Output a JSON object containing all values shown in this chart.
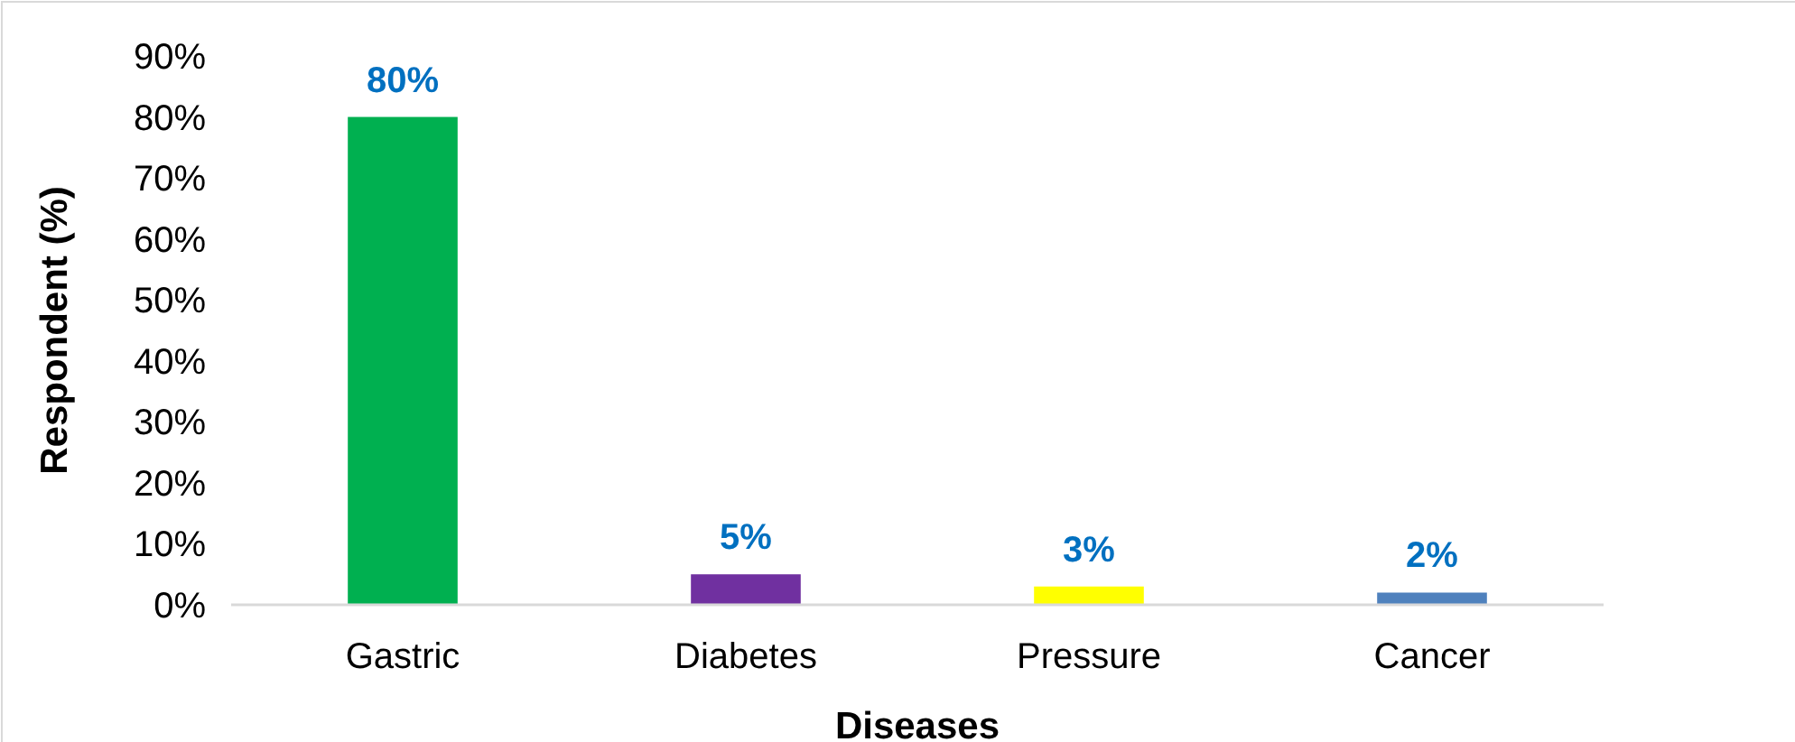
{
  "chart_data": {
    "type": "bar",
    "xlabel": "Diseases",
    "ylabel": "Respondent (%)",
    "categories": [
      "Gastric",
      "Diabetes",
      "Pressure",
      "Cancer"
    ],
    "values": [
      80,
      5,
      3,
      2
    ],
    "colors": [
      "#00b050",
      "#7030a0",
      "#ffff00",
      "#4f81bd"
    ],
    "value_labels": [
      "80%",
      "5%",
      "3%",
      "2%"
    ],
    "ylim": [
      0,
      90
    ],
    "yticks": [
      {
        "value": 0,
        "label": "0%"
      },
      {
        "value": 10,
        "label": "10%"
      },
      {
        "value": 20,
        "label": "20%"
      },
      {
        "value": 30,
        "label": "30%"
      },
      {
        "value": 40,
        "label": "40%"
      },
      {
        "value": 50,
        "label": "50%"
      },
      {
        "value": 60,
        "label": "60%"
      },
      {
        "value": 70,
        "label": "70%"
      },
      {
        "value": 80,
        "label": "80%"
      },
      {
        "value": 90,
        "label": "90%"
      }
    ],
    "grid": false
  }
}
